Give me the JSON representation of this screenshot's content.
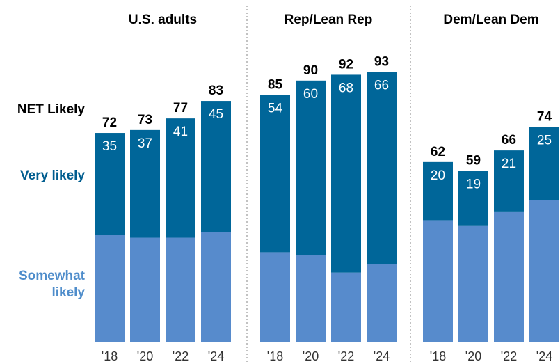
{
  "legend": {
    "net": "NET Likely",
    "very": "Very likely",
    "somewhat": "Somewhat likely"
  },
  "colors": {
    "very": "#006699",
    "somewhat": "#578bcc",
    "net_label": "#000000",
    "very_label": "#005d8f",
    "somewhat_label": "#4f8dcb",
    "inner_label": "#ffffff",
    "tick": "#333333",
    "divider": "#999999"
  },
  "chart_data": {
    "type": "bar",
    "stacked": true,
    "panel_titles": [
      "U.S. adults",
      "Rep/Lean Rep",
      "Dem/Lean Dem"
    ],
    "categories": [
      "'18",
      "'20",
      "'22",
      "'24"
    ],
    "segments": [
      "Somewhat likely",
      "Very likely"
    ],
    "panels": [
      {
        "title": "U.S. adults",
        "net": [
          72,
          73,
          77,
          83
        ],
        "very": [
          35,
          37,
          41,
          45
        ],
        "somewhat": [
          37,
          36,
          36,
          38
        ]
      },
      {
        "title": "Rep/Lean Rep",
        "net": [
          85,
          90,
          92,
          93
        ],
        "very": [
          54,
          60,
          68,
          66
        ],
        "somewhat": [
          31,
          30,
          24,
          27
        ]
      },
      {
        "title": "Dem/Lean Dem",
        "net": [
          62,
          59,
          66,
          74
        ],
        "very": [
          20,
          19,
          21,
          25
        ],
        "somewhat": [
          42,
          40,
          45,
          49
        ]
      }
    ],
    "ylim": [
      0,
      100
    ],
    "grid": false,
    "legend_position": "left"
  }
}
